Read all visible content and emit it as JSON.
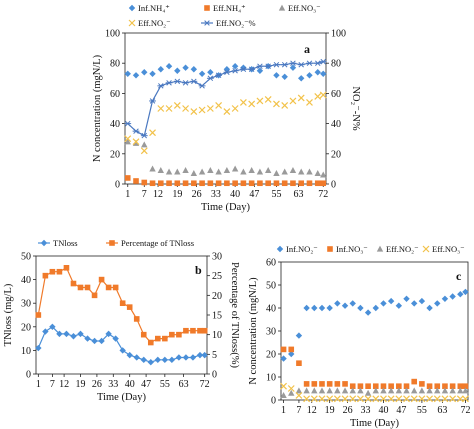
{
  "colors": {
    "inf_nh4": "#4a8fd8",
    "eff_nh4": "#f07a2a",
    "eff_no3": "#9a9a9a",
    "eff_no2": "#f2c24a",
    "eff_no2_pct": "#4a78c0",
    "tnloss": "#4a8fd8",
    "tnloss_pct": "#f07a2a",
    "c_inf_no2": "#4a8fd8",
    "c_inf_no3": "#f07a2a",
    "c_eff_no2": "#9a9a9a",
    "c_eff_no3": "#f2c24a"
  },
  "chart_data": [
    {
      "panel": "a",
      "type": "scatter",
      "xlabel": "Time (Day)",
      "ylabel": "N concentration (mgN/L)",
      "y2label": "NO₂⁻-N%",
      "xticks": [
        1,
        7,
        12,
        19,
        26,
        33,
        40,
        47,
        55,
        63,
        72
      ],
      "xlim": [
        0,
        73
      ],
      "ylim": [
        0,
        100
      ],
      "yticks": [
        0,
        20,
        40,
        60,
        80,
        100
      ],
      "y2lim": [
        0,
        100
      ],
      "y2ticks": [
        0,
        20,
        40,
        60,
        80,
        100
      ],
      "legend": [
        "Inf.NH₄⁺",
        "Eff.NH₄⁺",
        "Eff.NO₃⁻",
        "Eff.NO₂⁻",
        "Eff.NO₂⁻%"
      ],
      "series": [
        {
          "name": "Inf.NH₄⁺",
          "marker": "diamond",
          "axis": "left",
          "line": false,
          "x": [
            1,
            4,
            7,
            10,
            13,
            16,
            19,
            22,
            25,
            28,
            31,
            34,
            37,
            40,
            43,
            46,
            49,
            52,
            55,
            58,
            61,
            64,
            67,
            70,
            72
          ],
          "y": [
            73,
            72,
            74,
            73,
            76,
            78,
            75,
            77,
            76,
            73,
            74,
            72,
            76,
            78,
            77,
            76,
            75,
            78,
            72,
            71,
            77,
            70,
            72,
            74,
            73
          ]
        },
        {
          "name": "Eff.NH₄⁺",
          "marker": "square",
          "axis": "left",
          "line": false,
          "x": [
            1,
            4,
            7,
            10,
            13,
            16,
            19,
            22,
            25,
            28,
            31,
            34,
            37,
            40,
            43,
            46,
            49,
            52,
            55,
            58,
            61,
            64,
            67,
            70,
            72
          ],
          "y": [
            4,
            2,
            1,
            0.5,
            0.5,
            0.5,
            0.5,
            0.5,
            0.5,
            0.5,
            0.5,
            0.5,
            0.5,
            0.5,
            0.5,
            0.5,
            0.5,
            0.5,
            0.5,
            0.5,
            0.5,
            0.5,
            0.5,
            0.5,
            0.5
          ]
        },
        {
          "name": "Eff.NO₃⁻",
          "marker": "triangle",
          "axis": "left",
          "line": false,
          "x": [
            1,
            4,
            7,
            10,
            13,
            16,
            19,
            22,
            25,
            28,
            31,
            34,
            37,
            40,
            43,
            46,
            49,
            52,
            55,
            58,
            61,
            64,
            67,
            70,
            72
          ],
          "y": [
            28,
            27,
            26,
            10,
            9,
            8,
            8,
            9,
            7,
            8,
            9,
            8,
            9,
            10,
            8,
            9,
            8,
            9,
            7,
            8,
            9,
            8,
            8,
            7,
            6
          ]
        },
        {
          "name": "Eff.NO₂⁻",
          "marker": "x",
          "axis": "left",
          "line": false,
          "x": [
            1,
            4,
            7,
            10,
            13,
            16,
            19,
            22,
            25,
            28,
            31,
            34,
            37,
            40,
            43,
            46,
            49,
            52,
            55,
            58,
            61,
            64,
            67,
            70,
            72
          ],
          "y": [
            30,
            28,
            22,
            34,
            50,
            50,
            52,
            50,
            48,
            49,
            50,
            52,
            48,
            50,
            54,
            53,
            55,
            56,
            53,
            52,
            55,
            57,
            54,
            58,
            59
          ]
        },
        {
          "name": "Eff.NO₂⁻%",
          "marker": "star",
          "axis": "right",
          "line": true,
          "x": [
            1,
            4,
            7,
            10,
            13,
            16,
            19,
            22,
            25,
            28,
            31,
            34,
            37,
            40,
            43,
            46,
            49,
            52,
            55,
            58,
            61,
            64,
            67,
            70,
            72
          ],
          "y": [
            40,
            35,
            32,
            55,
            65,
            67,
            68,
            67,
            68,
            65,
            70,
            72,
            74,
            75,
            76,
            76,
            78,
            78,
            79,
            79,
            80,
            79,
            80,
            80,
            81
          ]
        }
      ]
    },
    {
      "panel": "b",
      "type": "line",
      "xlabel": "Time (Day)",
      "ylabel": "TNloss (mg/L)",
      "y2label": "Percentage of TNloss(%)",
      "xticks": [
        1,
        7,
        12,
        19,
        26,
        33,
        40,
        47,
        55,
        63,
        72
      ],
      "xlim": [
        0,
        73
      ],
      "ylim": [
        0,
        50
      ],
      "yticks": [
        0,
        10,
        20,
        30,
        40,
        50
      ],
      "y2lim": [
        0,
        30
      ],
      "y2ticks": [
        0,
        5,
        10,
        15,
        20,
        25,
        30
      ],
      "legend": [
        "TNloss",
        "Percentage of TNloss"
      ],
      "series": [
        {
          "name": "TNloss",
          "marker": "diamond",
          "axis": "left",
          "line": true,
          "x": [
            1,
            4,
            7,
            10,
            13,
            16,
            19,
            22,
            25,
            28,
            31,
            34,
            37,
            40,
            43,
            46,
            49,
            52,
            55,
            58,
            61,
            64,
            67,
            70,
            72
          ],
          "y": [
            11,
            18,
            20,
            17,
            17,
            16,
            17,
            15,
            14,
            14,
            17,
            15,
            10,
            8,
            7,
            6,
            5,
            6,
            6,
            6,
            7,
            7,
            7,
            8,
            8
          ]
        },
        {
          "name": "Percentage of TNloss",
          "marker": "square",
          "axis": "right",
          "line": true,
          "x": [
            1,
            4,
            7,
            10,
            13,
            16,
            19,
            22,
            25,
            28,
            31,
            34,
            37,
            40,
            43,
            46,
            49,
            52,
            55,
            58,
            61,
            64,
            67,
            70,
            72
          ],
          "y": [
            15,
            25,
            26,
            26,
            27,
            23,
            22,
            22,
            20,
            24,
            22,
            22,
            18,
            17,
            14,
            10,
            8,
            9,
            9,
            10,
            10,
            11,
            11,
            11,
            11
          ]
        }
      ]
    },
    {
      "panel": "c",
      "type": "scatter",
      "xlabel": "Time (Day)",
      "ylabel": "N concentration (mgN/L)",
      "xticks": [
        1,
        7,
        12,
        19,
        26,
        33,
        40,
        47,
        55,
        63,
        72
      ],
      "xlim": [
        0,
        73
      ],
      "ylim": [
        0,
        60
      ],
      "yticks": [
        0,
        10,
        20,
        30,
        40,
        50,
        60
      ],
      "legend": [
        "Inf.NO₂⁻",
        "Inf.NO₃⁻",
        "Eff.NO₂⁻",
        "Eff.NO₃⁻"
      ],
      "series": [
        {
          "name": "Inf.NO₂⁻",
          "marker": "diamond",
          "axis": "left",
          "line": false,
          "x": [
            1,
            4,
            7,
            10,
            13,
            16,
            19,
            22,
            25,
            28,
            31,
            34,
            37,
            40,
            43,
            46,
            49,
            52,
            55,
            58,
            61,
            64,
            67,
            70,
            72
          ],
          "y": [
            18,
            20,
            28,
            40,
            40,
            40,
            40,
            42,
            41,
            42,
            40,
            38,
            40,
            42,
            43,
            41,
            44,
            42,
            43,
            40,
            42,
            44,
            45,
            46,
            47
          ]
        },
        {
          "name": "Inf.NO₃⁻",
          "marker": "square",
          "axis": "left",
          "line": false,
          "x": [
            1,
            4,
            7,
            10,
            13,
            16,
            19,
            22,
            25,
            28,
            31,
            34,
            37,
            40,
            43,
            46,
            49,
            52,
            55,
            58,
            61,
            64,
            67,
            70,
            72
          ],
          "y": [
            22,
            22,
            16,
            7,
            7,
            7,
            7,
            7,
            7,
            6,
            6,
            6,
            6,
            6,
            6,
            6,
            6,
            8,
            7,
            6,
            6,
            6,
            6,
            6,
            6
          ]
        },
        {
          "name": "Eff.NO₂⁻",
          "marker": "triangle",
          "axis": "left",
          "line": false,
          "x": [
            1,
            4,
            7,
            10,
            13,
            16,
            19,
            22,
            25,
            28,
            31,
            34,
            37,
            40,
            43,
            46,
            49,
            52,
            55,
            58,
            61,
            64,
            67,
            70,
            72
          ],
          "y": [
            2,
            3,
            4,
            4,
            4,
            4,
            4,
            4,
            4,
            4,
            4,
            3,
            4,
            4,
            4,
            4,
            4,
            4,
            4,
            4,
            4,
            4,
            4,
            4,
            4
          ]
        },
        {
          "name": "Eff.NO₃⁻",
          "marker": "x",
          "axis": "left",
          "line": false,
          "x": [
            1,
            4,
            7,
            10,
            13,
            16,
            19,
            22,
            25,
            28,
            31,
            34,
            37,
            40,
            43,
            46,
            49,
            52,
            55,
            58,
            61,
            64,
            67,
            70,
            72
          ],
          "y": [
            6,
            5,
            2,
            0.5,
            0.5,
            0.5,
            0.5,
            0.5,
            0.5,
            0.5,
            0.5,
            0.5,
            0.5,
            0.5,
            0.5,
            0.5,
            0.5,
            0.5,
            0.5,
            0.5,
            0.5,
            0.5,
            0.5,
            0.5,
            0.5
          ]
        }
      ]
    }
  ]
}
